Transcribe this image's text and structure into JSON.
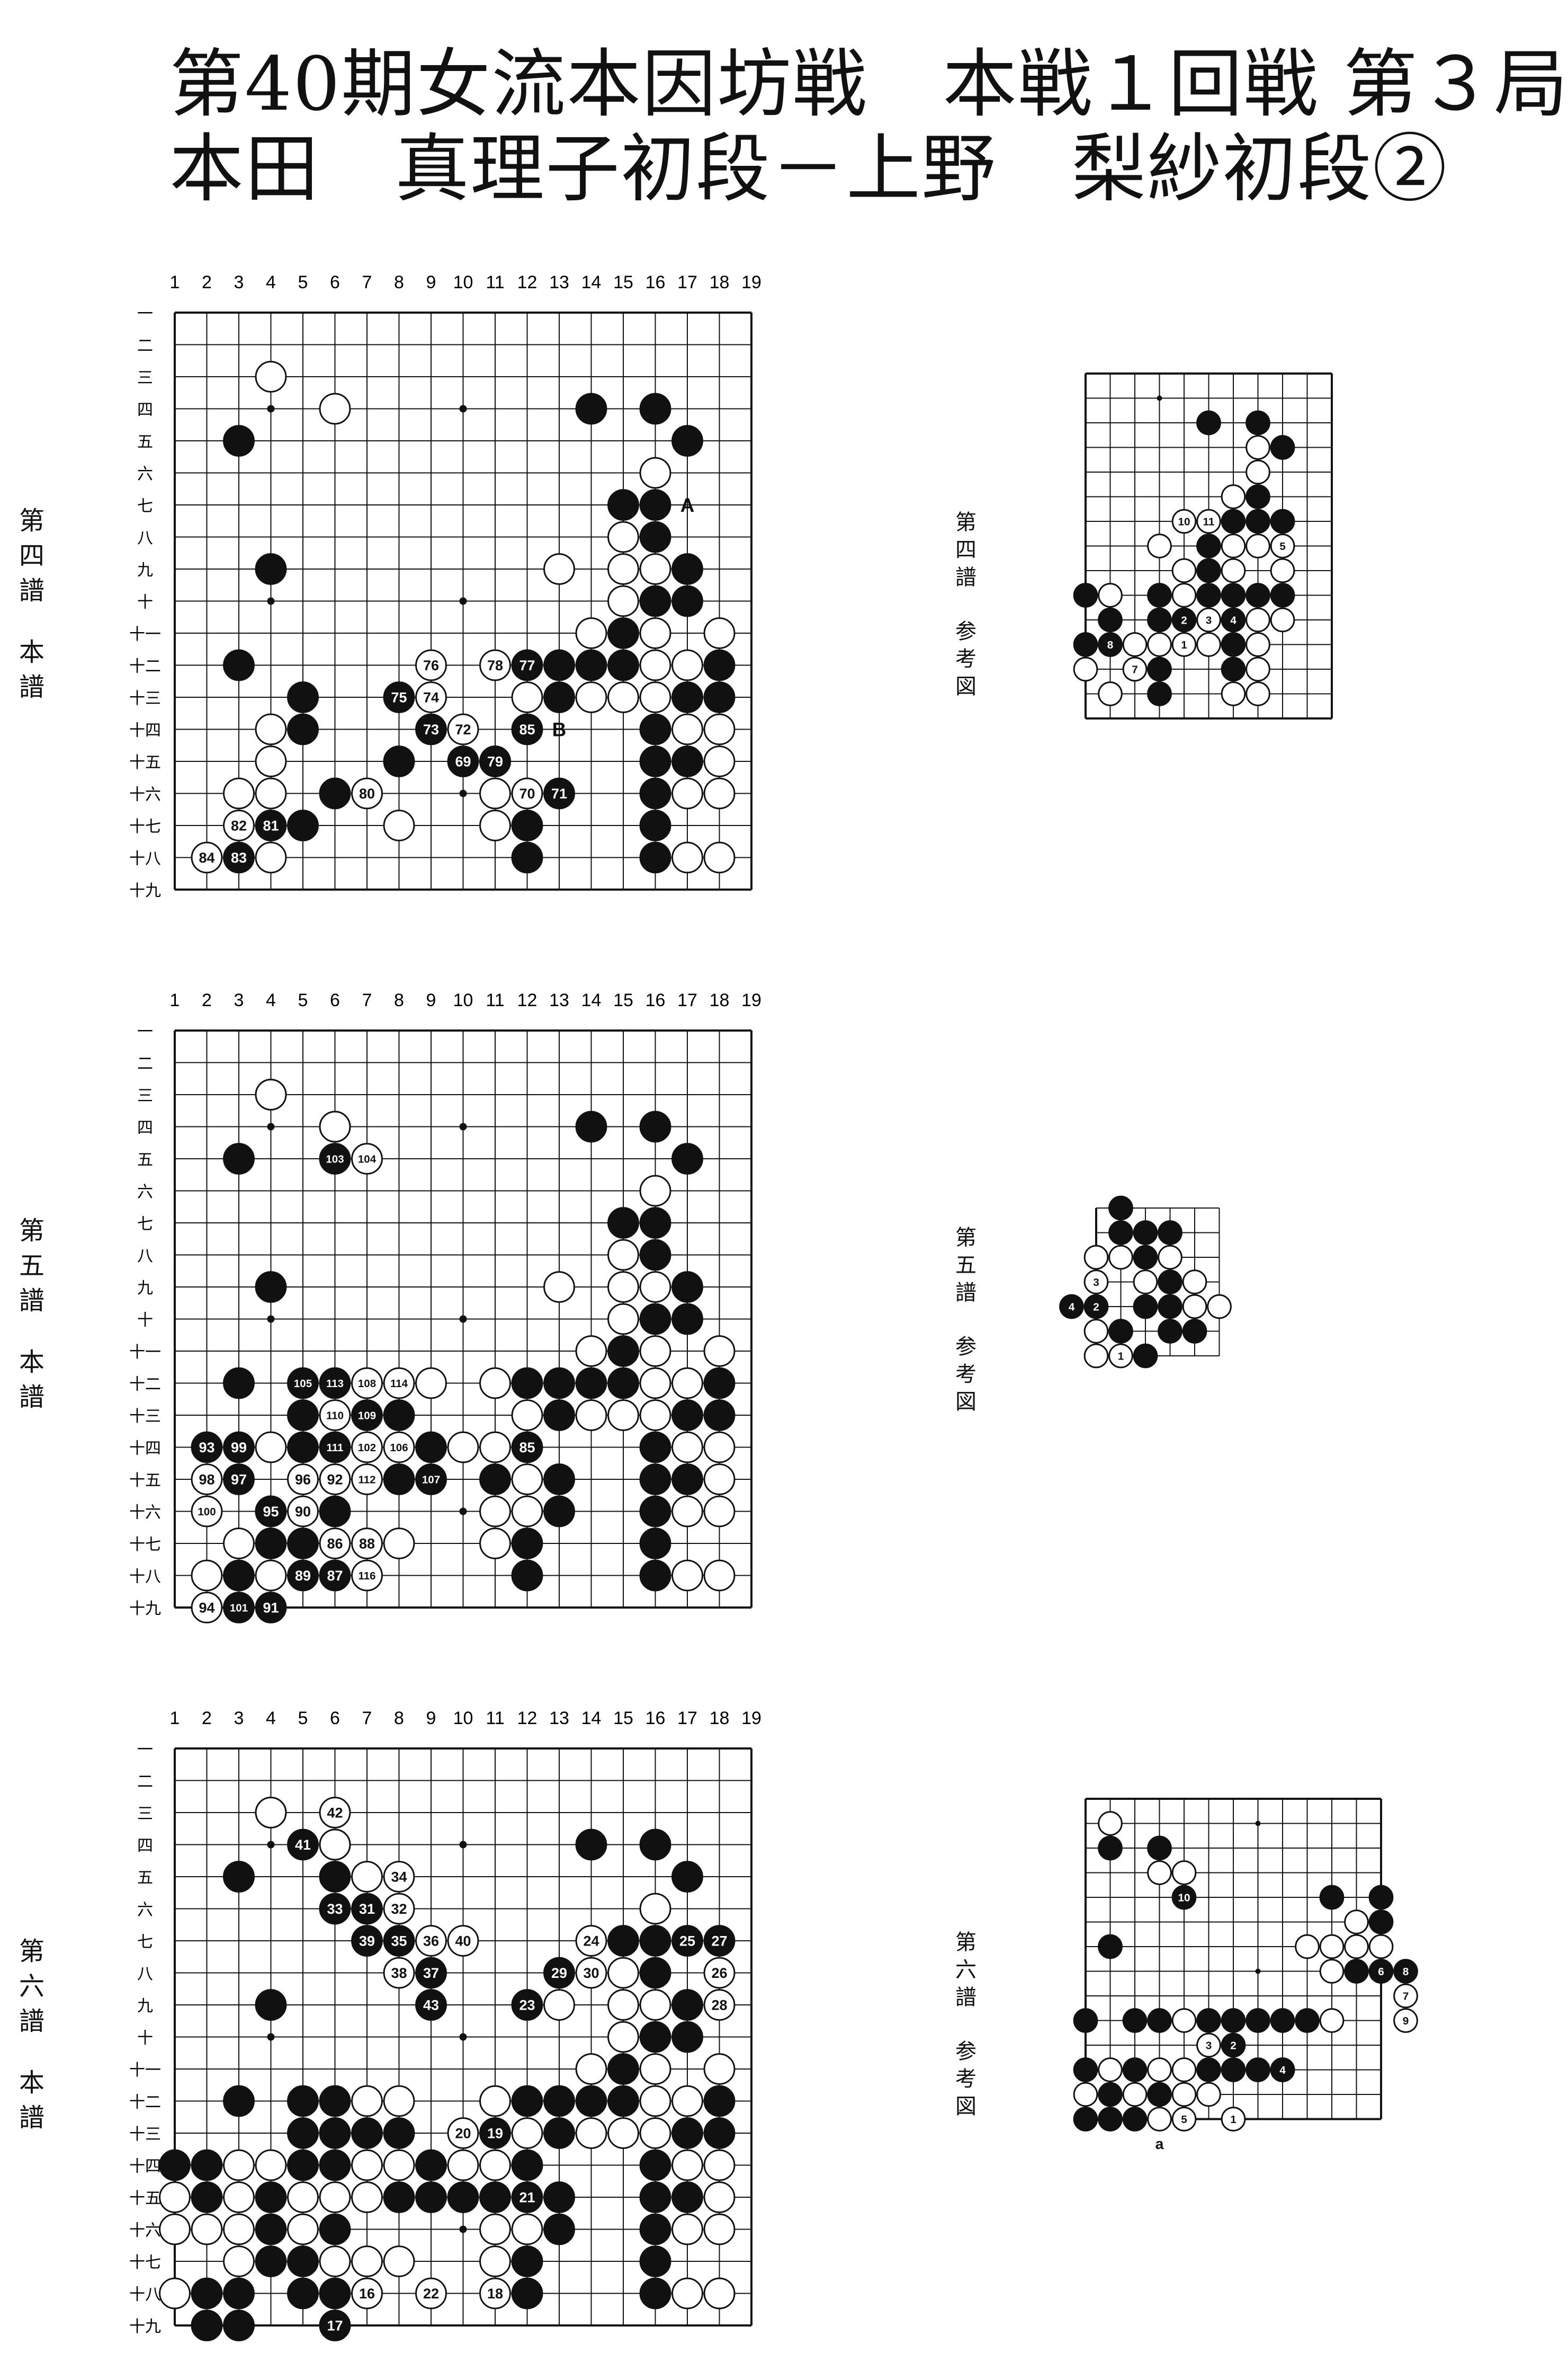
{
  "header": {
    "line1": "第40期女流本因坊戦　本戦１回戦 第３局",
    "line2": "本田　真理子初段－上野　梨紗初段②"
  },
  "col_labels": [
    "1",
    "2",
    "3",
    "4",
    "5",
    "6",
    "7",
    "8",
    "9",
    "10",
    "11",
    "12",
    "13",
    "14",
    "15",
    "16",
    "17",
    "18",
    "19"
  ],
  "row_labels": [
    "一",
    "二",
    "三",
    "四",
    "五",
    "六",
    "七",
    "八",
    "九",
    "十",
    "十一",
    "十二",
    "十三",
    "十四",
    "十五",
    "十六",
    "十七",
    "十八",
    "十九"
  ],
  "sections": [
    {
      "label_main": "第四譜　本譜",
      "label_ref": "第四譜　参考図",
      "main_annotations": [
        "A",
        "B"
      ],
      "main_moves": [
        "69",
        "70",
        "71",
        "72",
        "73",
        "74",
        "75",
        "76",
        "77",
        "78",
        "79",
        "80",
        "81",
        "82",
        "83",
        "84",
        "85"
      ],
      "ref_moves": [
        "1",
        "2",
        "3",
        "4",
        "5",
        "7",
        "8",
        "10",
        "11"
      ]
    },
    {
      "label_main": "第五譜　本譜",
      "label_ref": "第五譜　参考図",
      "main_moves": [
        "85",
        "86",
        "87",
        "88",
        "89",
        "90",
        "91",
        "92",
        "93",
        "94",
        "95",
        "96",
        "97",
        "98",
        "99",
        "100",
        "101",
        "102",
        "103",
        "104",
        "105",
        "106",
        "107",
        "108",
        "109",
        "110",
        "111",
        "112",
        "113",
        "114",
        "116"
      ],
      "ref_moves": [
        "1",
        "2",
        "3",
        "4"
      ]
    },
    {
      "label_main": "第六譜　本譜",
      "label_ref": "第六譜　参考図",
      "main_moves": [
        "16",
        "17",
        "18",
        "19",
        "20",
        "21",
        "22",
        "23",
        "24",
        "25",
        "26",
        "27",
        "28",
        "29",
        "30",
        "31",
        "32",
        "33",
        "34",
        "35",
        "36",
        "37",
        "38",
        "39",
        "40",
        "41",
        "42",
        "43"
      ],
      "ref_annotations": [
        "a"
      ],
      "ref_moves": [
        "1",
        "2",
        "3",
        "4",
        "5",
        "6",
        "7",
        "8",
        "9",
        "10"
      ]
    }
  ]
}
